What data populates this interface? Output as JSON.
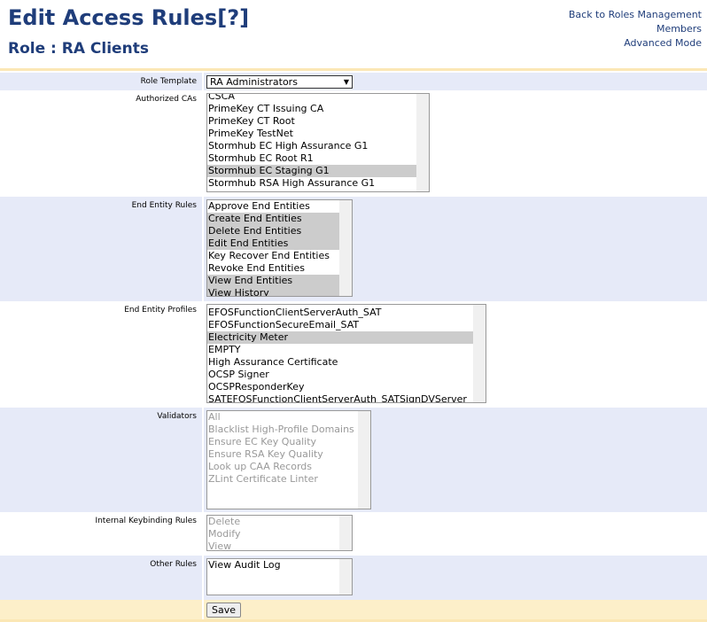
{
  "header": {
    "title": "Edit Access Rules",
    "help": "[?]",
    "role": "Role : RA Clients",
    "links": [
      "Back to Roles Management",
      "Members",
      "Advanced Mode"
    ]
  },
  "form": {
    "rows": [
      {
        "label": "Role Template",
        "select": "RA Administrators"
      },
      {
        "label": "Authorized CAs",
        "items": [
          {
            "text": "CSCA"
          },
          {
            "text": "PrimeKey CT Issuing CA"
          },
          {
            "text": "PrimeKey CT Root"
          },
          {
            "text": "PrimeKey TestNet"
          },
          {
            "text": "Stormhub EC High Assurance G1"
          },
          {
            "text": "Stormhub EC Root R1"
          },
          {
            "text": "Stormhub EC Staging G1",
            "selected": true
          },
          {
            "text": "Stormhub RSA High Assurance G1"
          }
        ]
      },
      {
        "label": "End Entity Rules",
        "items": [
          {
            "text": "Approve End Entities"
          },
          {
            "text": "Create End Entities",
            "selected": true
          },
          {
            "text": "Delete End Entities",
            "selected": true
          },
          {
            "text": "Edit End Entities",
            "selected": true
          },
          {
            "text": "Key Recover End Entities"
          },
          {
            "text": "Revoke End Entities"
          },
          {
            "text": "View End Entities",
            "selected": true
          },
          {
            "text": "View History",
            "selected": true
          }
        ]
      },
      {
        "label": "End Entity Profiles",
        "items": [
          {
            "text": "EFOSFunctionClientServerAuth_SAT"
          },
          {
            "text": "EFOSFunctionSecureEmail_SAT"
          },
          {
            "text": "Electricity Meter",
            "selected": true
          },
          {
            "text": "EMPTY"
          },
          {
            "text": "High Assurance Certificate"
          },
          {
            "text": "OCSP Signer"
          },
          {
            "text": "OCSPResponderKey"
          },
          {
            "text": "SATEFOSFunctionClientServerAuth_SATSignDVServer"
          }
        ]
      },
      {
        "label": "Validators",
        "disabled": true,
        "items": [
          {
            "text": "All"
          },
          {
            "text": "Blacklist High-Profile Domains"
          },
          {
            "text": "Ensure EC Key Quality"
          },
          {
            "text": "Ensure RSA Key Quality"
          },
          {
            "text": "Look up CAA Records"
          },
          {
            "text": "ZLint Certificate Linter"
          }
        ]
      },
      {
        "label": "Internal Keybinding Rules",
        "disabled": true,
        "items": [
          {
            "text": "Delete"
          },
          {
            "text": "Modify"
          },
          {
            "text": "View"
          }
        ]
      },
      {
        "label": "Other Rules",
        "items": [
          {
            "text": "View Audit Log"
          }
        ]
      }
    ],
    "save": "Save"
  }
}
